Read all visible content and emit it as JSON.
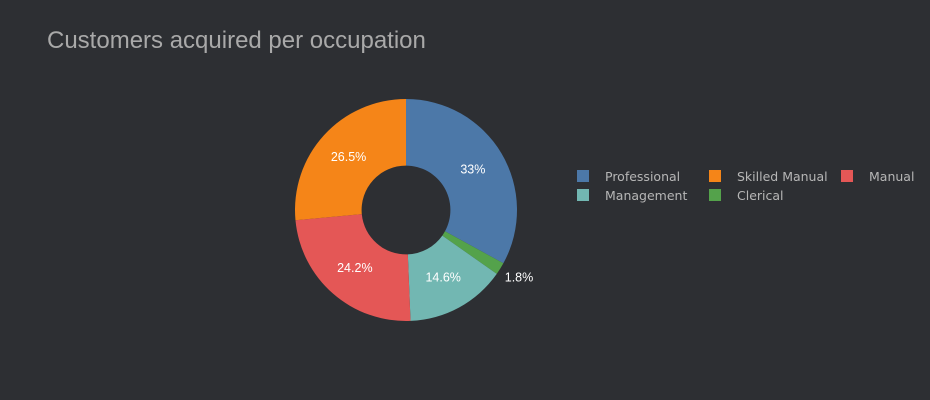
{
  "title": "Customers acquired per occupation",
  "chart_data": {
    "type": "pie",
    "hole": 0.4,
    "direction": "clockwise",
    "title": "Customers acquired per occupation",
    "legend_position": "right",
    "slices": [
      {
        "label": "Professional",
        "value": 33.0,
        "text": "33%",
        "color": "#4c78a8",
        "text_position": "inside"
      },
      {
        "label": "Clerical",
        "value": 1.8,
        "text": "1.8%",
        "color": "#54a24b",
        "text_position": "outside"
      },
      {
        "label": "Management",
        "value": 14.6,
        "text": "14.6%",
        "color": "#72b7b2",
        "text_position": "inside"
      },
      {
        "label": "Manual",
        "value": 24.2,
        "text": "24.2%",
        "color": "#e45756",
        "text_position": "inside"
      },
      {
        "label": "Skilled Manual",
        "value": 26.5,
        "text": "26.5%",
        "color": "#f58518",
        "text_position": "inside"
      }
    ]
  },
  "legend": [
    {
      "label": "Professional",
      "color": "#4c78a8"
    },
    {
      "label": "Skilled Manual",
      "color": "#f58518"
    },
    {
      "label": "Manual",
      "color": "#e45756"
    },
    {
      "label": "Management",
      "color": "#72b7b2"
    },
    {
      "label": "Clerical",
      "color": "#54a24b"
    }
  ],
  "colors": {
    "background": "#2d2f33",
    "title": "#a9a9a9",
    "legend_text": "#b6b6b6",
    "slice_text": "#ffffff"
  }
}
